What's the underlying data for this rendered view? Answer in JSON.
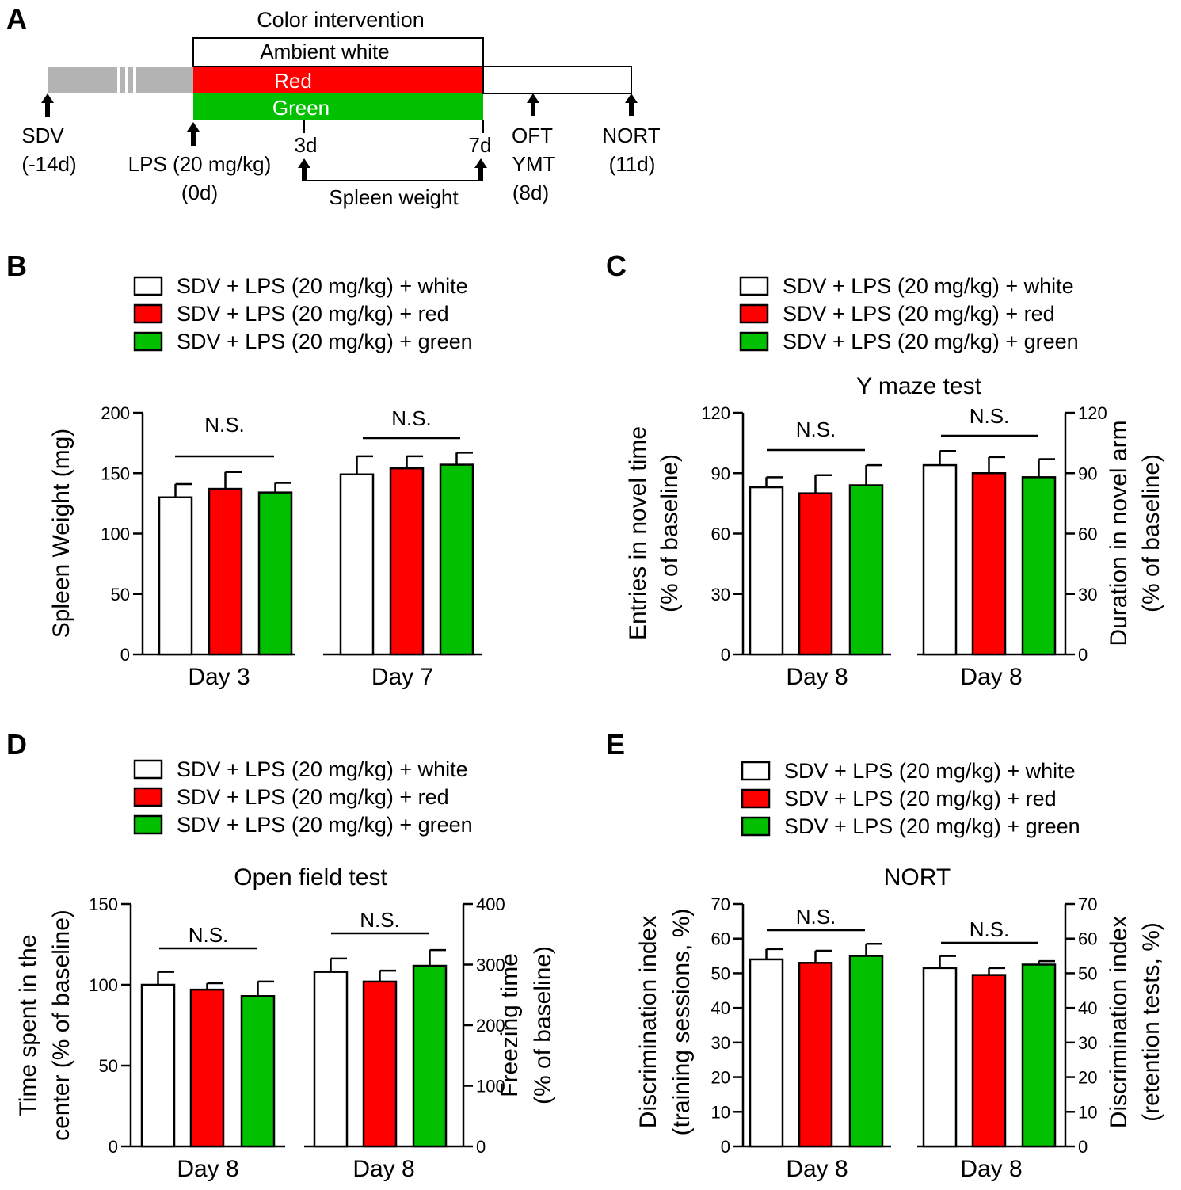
{
  "colors": {
    "white": "#ffffff",
    "red": "#ff0000",
    "green": "#00c000",
    "grey": "#b3b3b3"
  },
  "panel_labels": {
    "a": "A",
    "b": "B",
    "c": "C",
    "d": "D",
    "e": "E"
  },
  "timeline": {
    "header": "Color intervention",
    "white_label": "Ambient white",
    "red_label": "Red",
    "green_label": "Green",
    "sdv": "SDV",
    "sdv_day": "(-14d)",
    "lps": "LPS (20 mg/kg)",
    "lps_day": "(0d)",
    "d3": "3d",
    "d7": "7d",
    "spleen": "Spleen weight",
    "oft": "OFT",
    "ymt": "YMT",
    "oft_day": "(8d)",
    "nort": "NORT",
    "nort_day": "(11d)"
  },
  "legend": [
    "SDV + LPS (20 mg/kg) + white",
    "SDV + LPS (20 mg/kg) + red",
    "SDV + LPS (20 mg/kg) + green"
  ],
  "sig": "N.S.",
  "chart_data": [
    {
      "id": "B",
      "type": "bar",
      "title": "",
      "ylabel": "Spleen Weight (mg)",
      "ylim": [
        0,
        200
      ],
      "yticks": [
        "0",
        "50",
        "100",
        "150",
        "200"
      ],
      "categories": [
        "Day 3",
        "Day 7"
      ],
      "series_colors": [
        "white",
        "red",
        "green"
      ],
      "values": [
        [
          130,
          137,
          134
        ],
        [
          149,
          154,
          157
        ]
      ],
      "errors": [
        [
          11,
          14,
          8
        ],
        [
          15,
          10,
          10
        ]
      ],
      "annotations": [
        "N.S.",
        "N.S."
      ]
    },
    {
      "id": "C",
      "type": "bar",
      "title": "Y maze test",
      "ylabel_left": [
        "Entries in novel time",
        "(% of baseline)"
      ],
      "ylabel_right": [
        "Duration in novel arm",
        "(% of baseline)"
      ],
      "ylim_left": [
        0,
        120
      ],
      "ylim_right": [
        0,
        120
      ],
      "yticks_left": [
        "0",
        "30",
        "60",
        "90",
        "120"
      ],
      "yticks_right": [
        "0",
        "30",
        "60",
        "90",
        "120"
      ],
      "categories": [
        "Day 8",
        "Day 8"
      ],
      "values": [
        [
          83,
          80,
          84
        ],
        [
          94,
          90,
          88
        ]
      ],
      "errors": [
        [
          5,
          9,
          10
        ],
        [
          7,
          8,
          9
        ]
      ],
      "annotations": [
        "N.S.",
        "N.S."
      ]
    },
    {
      "id": "D",
      "type": "bar",
      "title": "Open field test",
      "ylabel_left": [
        "Time spent in the",
        "center (% of baseline)"
      ],
      "ylabel_right": [
        "Freezing time",
        "(% of baseline)"
      ],
      "ylim_left": [
        0,
        150
      ],
      "ylim_right": [
        0,
        400
      ],
      "yticks_left": [
        "0",
        "50",
        "100",
        "150"
      ],
      "yticks_right": [
        "0",
        "100",
        "200",
        "300",
        "400"
      ],
      "categories": [
        "Day 8",
        "Day 8"
      ],
      "values": [
        [
          100,
          97,
          93
        ],
        [
          288,
          272,
          298
        ]
      ],
      "errors": [
        [
          8,
          4,
          9
        ],
        [
          22,
          18,
          26
        ]
      ],
      "annotations": [
        "N.S.",
        "N.S."
      ]
    },
    {
      "id": "E",
      "type": "bar",
      "title": "NORT",
      "ylabel_left": [
        "Discrimination index",
        "(training sessions, %)"
      ],
      "ylabel_right": [
        "Discrimination index",
        "(retention tests, %)"
      ],
      "ylim_left": [
        0,
        70
      ],
      "ylim_right": [
        0,
        70
      ],
      "yticks_left": [
        "0",
        "10",
        "20",
        "30",
        "40",
        "50",
        "60",
        "70"
      ],
      "yticks_right": [
        "0",
        "10",
        "20",
        "30",
        "40",
        "50",
        "60",
        "70"
      ],
      "categories": [
        "Day 8",
        "Day 8"
      ],
      "values": [
        [
          54,
          53,
          55
        ],
        [
          51.5,
          49.5,
          52.5
        ]
      ],
      "errors": [
        [
          3,
          3.5,
          3.5
        ],
        [
          3.5,
          2,
          1
        ]
      ],
      "annotations": [
        "N.S.",
        "N.S."
      ]
    }
  ]
}
